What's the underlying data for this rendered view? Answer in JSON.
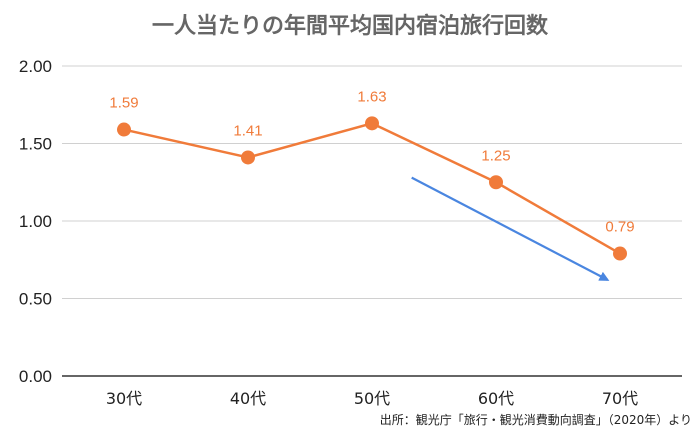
{
  "chart_data": {
    "type": "line",
    "title": "一人当たりの年間平均国内宿泊旅行回数",
    "categories": [
      "30代",
      "40代",
      "50代",
      "60代",
      "70代"
    ],
    "series": [
      {
        "values": [
          1.59,
          1.41,
          1.63,
          1.25,
          0.79
        ],
        "data_labels": [
          "1.59",
          "1.41",
          "1.63",
          "1.25",
          "0.79"
        ]
      }
    ],
    "ylim": [
      0,
      2
    ],
    "yticks": [
      0,
      0.5,
      1,
      1.5,
      2
    ],
    "ytick_labels": [
      "0.00",
      "0.50",
      "1.00",
      "1.50",
      "2.00"
    ],
    "grid": true,
    "legend": "none",
    "colors": {
      "series": "#f07b3a",
      "trend_arrow": "#4a86e0",
      "grid": "#d0d0d0",
      "axis": "#333333",
      "title": "#666666"
    },
    "annotations": {
      "trend_arrow": {
        "direction": "down",
        "from_category": "60代",
        "from_value": 1.28,
        "to_category": "70代",
        "to_value": 0.62
      }
    },
    "source": "出所：観光庁「旅行・観光消費動向調査」（2020年）より"
  }
}
